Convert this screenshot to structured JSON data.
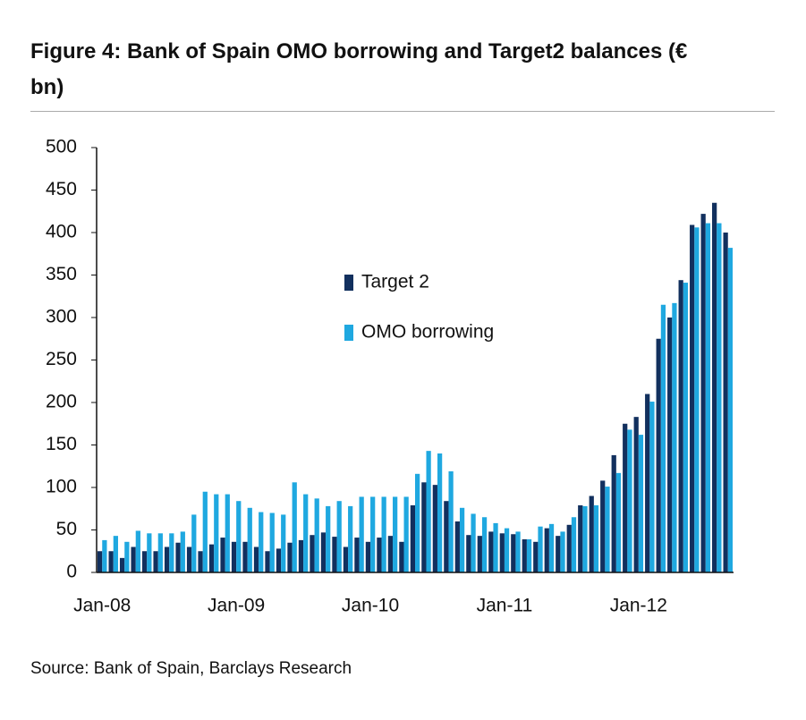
{
  "chart_data": {
    "type": "bar",
    "title": "Figure 4: Bank of Spain OMO borrowing and Target2 balances (€ bn)",
    "source": "Source: Bank of Spain, Barclays Research",
    "categories": [
      "Jan-08",
      null,
      null,
      null,
      null,
      null,
      null,
      null,
      null,
      null,
      null,
      null,
      "Jan-09",
      null,
      null,
      null,
      null,
      null,
      null,
      null,
      null,
      null,
      null,
      null,
      "Jan-10",
      null,
      null,
      null,
      null,
      null,
      null,
      null,
      null,
      null,
      null,
      null,
      "Jan-11",
      null,
      null,
      null,
      null,
      null,
      null,
      null,
      null,
      null,
      null,
      null,
      "Jan-12",
      null,
      null,
      null,
      null,
      null,
      null,
      null,
      null
    ],
    "series": [
      {
        "name": "Target 2",
        "color": "#12305e",
        "values": [
          25,
          25,
          17,
          30,
          25,
          25,
          30,
          35,
          30,
          25,
          33,
          41,
          36,
          36,
          30,
          25,
          28,
          35,
          38,
          44,
          47,
          42,
          30,
          41,
          36,
          41,
          43,
          36,
          79,
          106,
          103,
          84,
          60,
          44,
          43,
          48,
          46,
          45,
          39,
          36,
          52,
          43,
          56,
          79,
          90,
          108,
          138,
          175,
          183,
          210,
          275,
          300,
          344,
          409,
          422,
          435,
          400
        ]
      },
      {
        "name": "OMO borrowing",
        "color": "#1fa8e0",
        "values": [
          38,
          43,
          36,
          49,
          46,
          46,
          46,
          48,
          68,
          95,
          92,
          92,
          84,
          76,
          71,
          70,
          68,
          106,
          92,
          87,
          78,
          84,
          78,
          89,
          89,
          89,
          89,
          89,
          116,
          143,
          140,
          119,
          76,
          69,
          65,
          58,
          52,
          48,
          39,
          54,
          57,
          48,
          65,
          78,
          79,
          101,
          117,
          168,
          162,
          201,
          315,
          317,
          341,
          406,
          411,
          411,
          382
        ]
      }
    ],
    "ylim": [
      0,
      500
    ],
    "yticks": [
      0,
      50,
      100,
      150,
      200,
      250,
      300,
      350,
      400,
      450,
      500
    ]
  }
}
